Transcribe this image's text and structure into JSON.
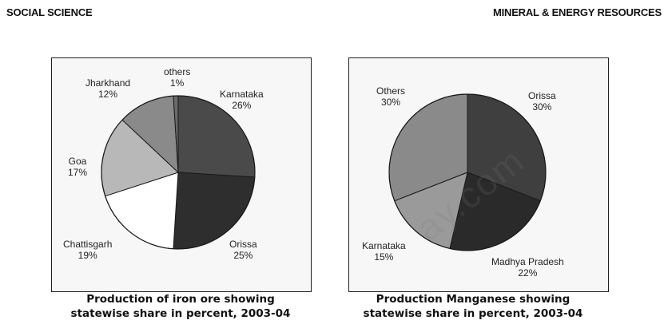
{
  "header": {
    "left": "SOCIAL SCIENCE",
    "right": "MINERAL & ENERGY RESOURCES"
  },
  "watermark": "ay.com",
  "chart_data": [
    {
      "type": "pie",
      "title": "Production of iron ore showing statewise share in percent, 2003-04",
      "title_lines": [
        "Production of iron ore showing",
        "statewise share in percent, 2003-04"
      ],
      "slices": [
        {
          "name": "Karnataka",
          "value": 26,
          "value_label": "26%",
          "color": "#4a4a4a"
        },
        {
          "name": "Orissa",
          "value": 25,
          "value_label": "25%",
          "color": "#2e2e2e"
        },
        {
          "name": "Chattisgarh",
          "value": 19,
          "value_label": "19%",
          "color": "#ffffff"
        },
        {
          "name": "Goa",
          "value": 17,
          "value_label": "17%",
          "color": "#b8b8b8"
        },
        {
          "name": "Jharkhand",
          "value": 12,
          "value_label": "12%",
          "color": "#8a8a8a"
        },
        {
          "name": "others",
          "value": 1,
          "value_label": "1%",
          "color": "#6a6a6a"
        }
      ]
    },
    {
      "type": "pie",
      "title": "Production Manganese showing statewise share in percent, 2003-04",
      "title_lines": [
        "Production Manganese showing",
        "statewise share in percent, 2003-04"
      ],
      "slices": [
        {
          "name": "Orissa",
          "value": 30,
          "value_label": "30%",
          "color": "#3f3f3f"
        },
        {
          "name": "Madhya Pradesh",
          "value": 22,
          "value_label": "22%",
          "color": "#2a2a2a"
        },
        {
          "name": "Karnataka",
          "value": 15,
          "value_label": "15%",
          "color": "#9a9a9a"
        },
        {
          "name": "Others",
          "value": 30,
          "value_label": "30%",
          "color": "#8a8a8a"
        }
      ]
    }
  ]
}
